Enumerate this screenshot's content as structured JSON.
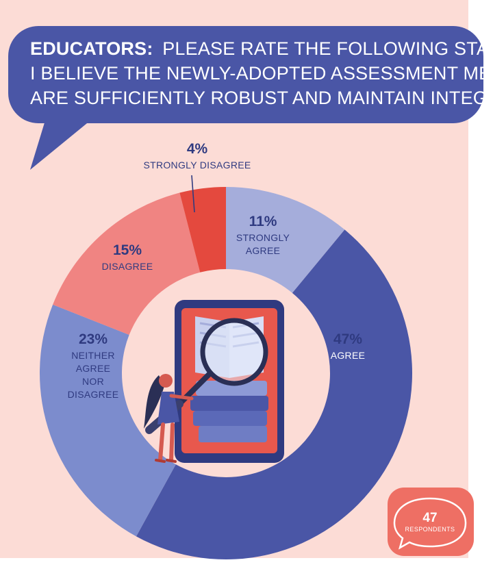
{
  "header": {
    "title_bold": "EDUCATORS:",
    "title_rest": "PLEASE RATE THE FOLLOWING STATEMENT:",
    "statement_lines": [
      "I BELIEVE THE NEWLY-ADOPTED ASSESSMENT METHODS",
      "ARE SUFFICIENTLY ROBUST AND MAINTAIN INTEGRITY"
    ]
  },
  "badge": {
    "count": "47",
    "label": "RESPONDENTS"
  },
  "colors": {
    "background": "#fcdcd6",
    "bubble": "#4a56a6",
    "strongly_agree": "#a5addb",
    "agree": "#4a56a6",
    "neither": "#7c8ccd",
    "disagree": "#f08482",
    "strongly_disagree": "#e4493e",
    "badge": "#ee6f64"
  },
  "chart_data": {
    "type": "pie",
    "labels": [
      "STRONGLY AGREE",
      "AGREE",
      "NEITHER AGREE NOR DISAGREE",
      "DISAGREE",
      "STRONGLY DISAGREE"
    ],
    "values": [
      11,
      47,
      23,
      15,
      4
    ],
    "value_labels": [
      "11%",
      "47%",
      "23%",
      "15%",
      "4%"
    ],
    "label_lines": [
      [
        "STRONGLY",
        "AGREE"
      ],
      [
        "AGREE"
      ],
      [
        "NEITHER",
        "AGREE",
        "NOR",
        "DISAGREE"
      ],
      [
        "DISAGREE"
      ],
      [
        "STRONGLY DISAGREE"
      ]
    ],
    "colors": [
      "#a5addb",
      "#4a56a6",
      "#7c8ccd",
      "#f08482",
      "#e4493e"
    ],
    "hole": "donut"
  }
}
